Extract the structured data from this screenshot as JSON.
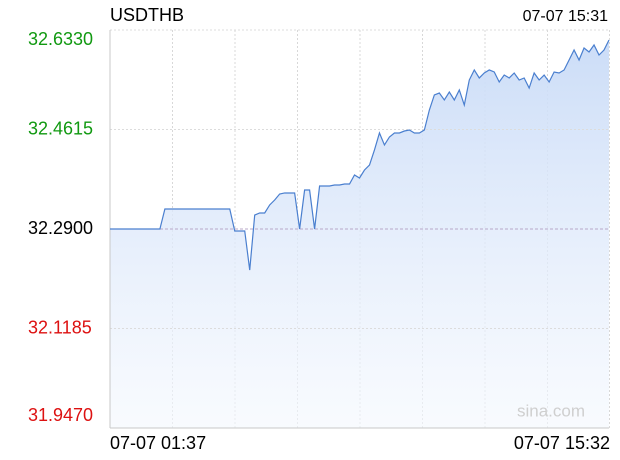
{
  "chart_data": {
    "type": "line",
    "title": "USDTHB",
    "timestamp": "07-07 15:31",
    "x_start_label": "07-07 01:37",
    "x_end_label": "07-07 15:32",
    "watermark": "sina.com",
    "color": "#4a7fcf",
    "reference": 32.29,
    "up_color": "#119911",
    "down_color": "#dd1111",
    "flat_color": "#000000",
    "ylim": [
      31.947,
      32.633
    ],
    "yticks": [
      {
        "value": 32.633,
        "label": "32.6330"
      },
      32.4615,
      {
        "value": 32.29,
        "label": "32.2900"
      },
      32.1185,
      {
        "value": 31.947,
        "label": "31.9470"
      }
    ],
    "grid": true,
    "values": [
      32.29,
      32.29,
      32.29,
      32.29,
      32.29,
      32.29,
      32.29,
      32.29,
      32.29,
      32.29,
      32.29,
      32.3245,
      32.3245,
      32.3245,
      32.3245,
      32.3245,
      32.3245,
      32.3245,
      32.3245,
      32.3245,
      32.3245,
      32.3245,
      32.3245,
      32.3245,
      32.3245,
      32.2866,
      32.2866,
      32.2866,
      32.2193,
      32.3141,
      32.3176,
      32.3176,
      32.3314,
      32.34,
      32.3503,
      32.3521,
      32.3521,
      32.3521,
      32.29,
      32.3572,
      32.3572,
      32.29,
      32.3641,
      32.3641,
      32.3641,
      32.3658,
      32.3658,
      32.3676,
      32.3676,
      32.3831,
      32.3779,
      32.3917,
      32.4003,
      32.4262,
      32.4555,
      32.4348,
      32.4486,
      32.4555,
      32.4555,
      32.4589,
      32.4606,
      32.4555,
      32.4555,
      32.4606,
      32.4951,
      32.521,
      32.5244,
      32.5124,
      32.5261,
      32.5124,
      32.5296,
      32.5037,
      32.5468,
      32.5641,
      32.5503,
      32.5589,
      32.5641,
      32.5606,
      32.5434,
      32.5554,
      32.5503,
      32.5589,
      32.5468,
      32.5503,
      32.533,
      32.5589,
      32.5468,
      32.5554,
      32.5434,
      32.5606,
      32.5589,
      32.5641,
      32.5813,
      32.5985,
      32.5813,
      32.602,
      32.5951,
      32.6072,
      32.5899,
      32.5985,
      32.6158
    ]
  }
}
